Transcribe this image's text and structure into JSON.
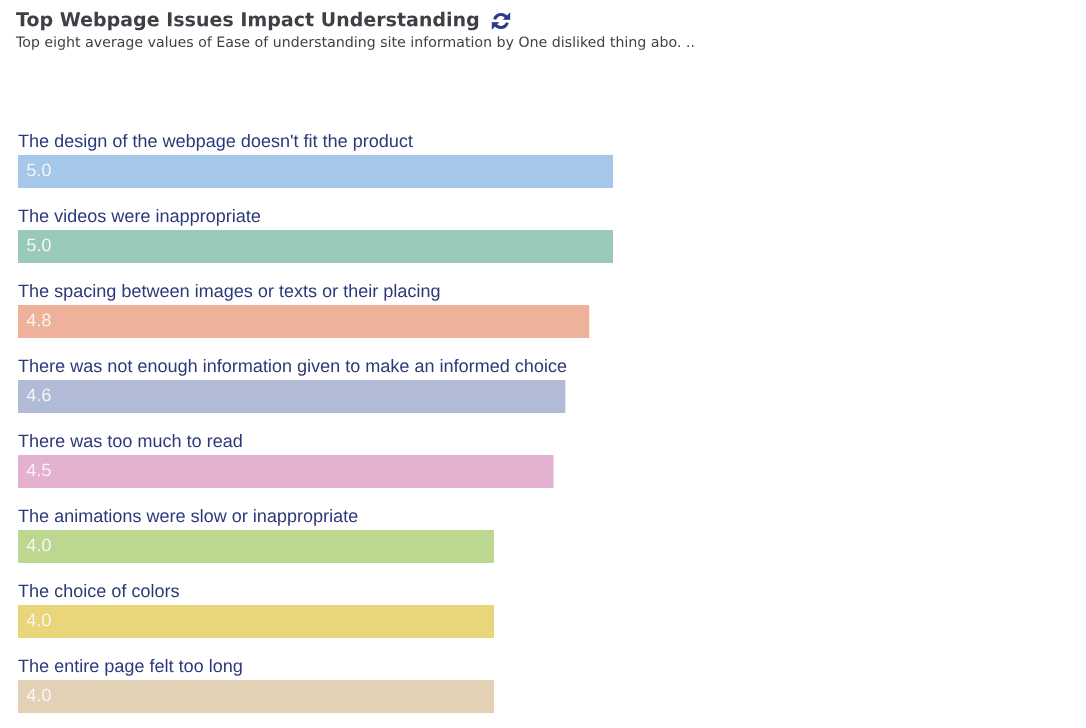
{
  "chart_data": {
    "type": "bar",
    "orientation": "horizontal",
    "title": "Top Webpage Issues Impact Understanding",
    "subtitle": "Top eight average values of Ease of understanding site information by One disliked thing abo. ..",
    "categories": [
      "The design of the webpage doesn't fit the product",
      "The videos were inappropriate",
      "The spacing between images or texts or their placing",
      "There was not enough information given to make an informed choice",
      "There was too much to read",
      "The animations were slow or inappropriate",
      "The choice of colors",
      "The entire page felt too long"
    ],
    "values": [
      5.0,
      5.0,
      4.8,
      4.6,
      4.5,
      4.0,
      4.0,
      4.0
    ],
    "value_labels": [
      "5.0",
      "5.0",
      "4.8",
      "4.6",
      "4.5",
      "4.0",
      "4.0",
      "4.0"
    ],
    "colors": [
      "#a4c7ea",
      "#98c9b9",
      "#eeb19a",
      "#b2bbd5",
      "#e4b1d1",
      "#bcd78f",
      "#ebd57b",
      "#e3d1b6"
    ],
    "tick_labels": "y"
  }
}
